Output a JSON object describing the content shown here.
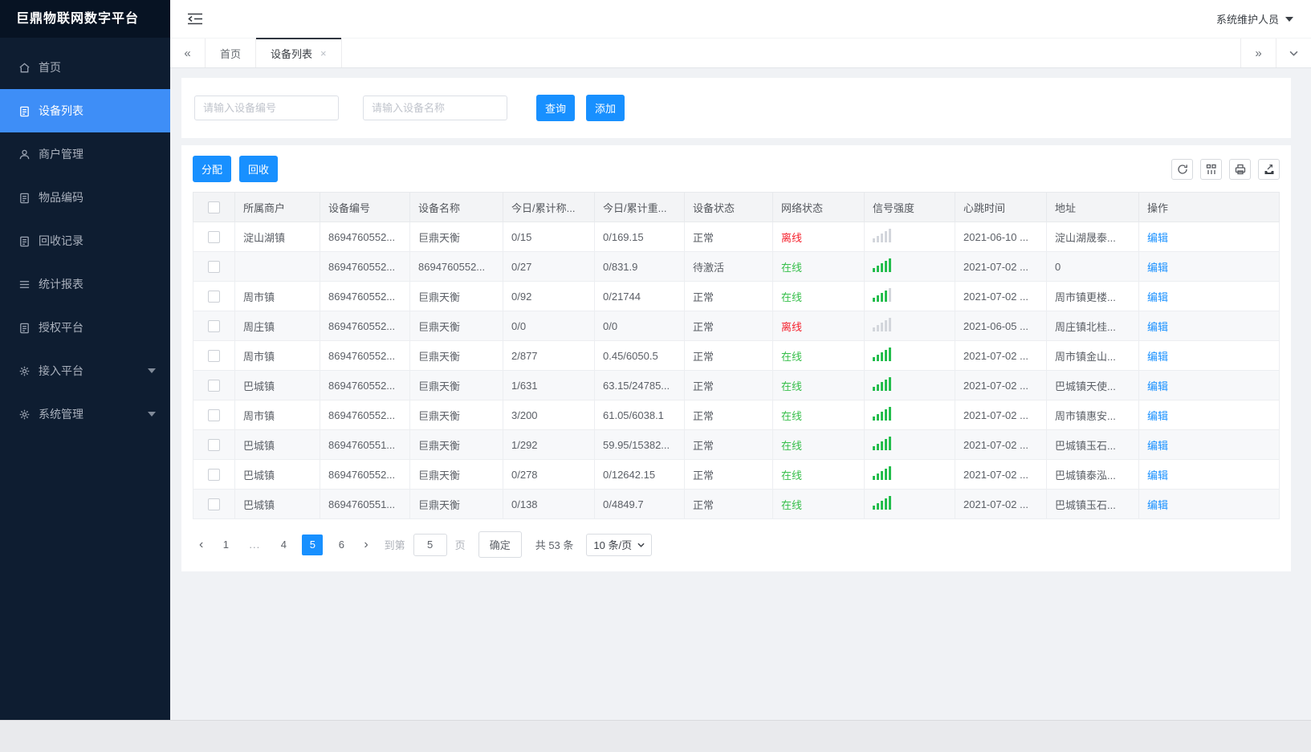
{
  "app": {
    "title": "巨鼎物联网数字平台",
    "user": "系统维护人员"
  },
  "colors": {
    "sidebar_bg": "#0e1d31",
    "sidebar_active": "#3e8ef7",
    "accent_blue": "#1890ff",
    "online_green": "#36bf4a",
    "offline_red": "#f5222d",
    "signal_green": "#24bd4d"
  },
  "sidebar": {
    "items": [
      {
        "id": "home",
        "label": "首页",
        "icon": "home-icon",
        "active": false,
        "expandable": false
      },
      {
        "id": "device-list",
        "label": "设备列表",
        "icon": "clipboard-icon",
        "active": true,
        "expandable": false
      },
      {
        "id": "merchant-mgmt",
        "label": "商户管理",
        "icon": "user-icon",
        "active": false,
        "expandable": false
      },
      {
        "id": "item-codes",
        "label": "物品编码",
        "icon": "clipboard-icon",
        "active": false,
        "expandable": false
      },
      {
        "id": "recycle-records",
        "label": "回收记录",
        "icon": "clipboard-icon",
        "active": false,
        "expandable": false
      },
      {
        "id": "report-stats",
        "label": "统计报表",
        "icon": "lines-icon",
        "active": false,
        "expandable": false
      },
      {
        "id": "auth-platform",
        "label": "授权平台",
        "icon": "clipboard-icon",
        "active": false,
        "expandable": false
      },
      {
        "id": "access-platform",
        "label": "接入平台",
        "icon": "gear-icon",
        "active": false,
        "expandable": true
      },
      {
        "id": "system-mgmt",
        "label": "系统管理",
        "icon": "gear-icon",
        "active": false,
        "expandable": true
      }
    ]
  },
  "tabs": {
    "items": [
      {
        "label": "首页",
        "active": false,
        "closable": false
      },
      {
        "label": "设备列表",
        "active": true,
        "closable": true
      }
    ]
  },
  "search": {
    "device_no_placeholder": "请输入设备编号",
    "device_name_placeholder": "请输入设备名称",
    "query_label": "查询",
    "add_label": "添加"
  },
  "toolbar": {
    "assign_label": "分配",
    "recycle_label": "回收"
  },
  "table": {
    "columns": [
      "所属商户",
      "设备编号",
      "设备名称",
      "今日/累计称...",
      "今日/累计重...",
      "设备状态",
      "网络状态",
      "信号强度",
      "心跳时间",
      "地址",
      "操作"
    ],
    "rows": [
      {
        "merchant": "淀山湖镇",
        "device_no": "8694760552...",
        "device_name": "巨鼎天衡",
        "today_count": "0/15",
        "today_weight": "0/169.15",
        "device_status": "正常",
        "network": "离线",
        "online": false,
        "signal": 0,
        "heartbeat": "2021-06-10 ...",
        "address": "淀山湖晟泰...",
        "action": "编辑"
      },
      {
        "merchant": "",
        "device_no": "8694760552...",
        "device_name": "8694760552...",
        "today_count": "0/27",
        "today_weight": "0/831.9",
        "device_status": "待激活",
        "network": "在线",
        "online": true,
        "signal": 5,
        "heartbeat": "2021-07-02 ...",
        "address": "0",
        "action": "编辑"
      },
      {
        "merchant": "周市镇",
        "device_no": "8694760552...",
        "device_name": "巨鼎天衡",
        "today_count": "0/92",
        "today_weight": "0/21744",
        "device_status": "正常",
        "network": "在线",
        "online": true,
        "signal": 4,
        "heartbeat": "2021-07-02 ...",
        "address": "周市镇更楼...",
        "action": "编辑"
      },
      {
        "merchant": "周庄镇",
        "device_no": "8694760552...",
        "device_name": "巨鼎天衡",
        "today_count": "0/0",
        "today_weight": "0/0",
        "device_status": "正常",
        "network": "离线",
        "online": false,
        "signal": 0,
        "heartbeat": "2021-06-05 ...",
        "address": "周庄镇北桂...",
        "action": "编辑"
      },
      {
        "merchant": "周市镇",
        "device_no": "8694760552...",
        "device_name": "巨鼎天衡",
        "today_count": "2/877",
        "today_weight": "0.45/6050.5",
        "device_status": "正常",
        "network": "在线",
        "online": true,
        "signal": 5,
        "heartbeat": "2021-07-02 ...",
        "address": "周市镇金山...",
        "action": "编辑"
      },
      {
        "merchant": "巴城镇",
        "device_no": "8694760552...",
        "device_name": "巨鼎天衡",
        "today_count": "1/631",
        "today_weight": "63.15/24785...",
        "device_status": "正常",
        "network": "在线",
        "online": true,
        "signal": 5,
        "heartbeat": "2021-07-02 ...",
        "address": "巴城镇天使...",
        "action": "编辑"
      },
      {
        "merchant": "周市镇",
        "device_no": "8694760552...",
        "device_name": "巨鼎天衡",
        "today_count": "3/200",
        "today_weight": "61.05/6038.1",
        "device_status": "正常",
        "network": "在线",
        "online": true,
        "signal": 5,
        "heartbeat": "2021-07-02 ...",
        "address": "周市镇惠安...",
        "action": "编辑"
      },
      {
        "merchant": "巴城镇",
        "device_no": "8694760551...",
        "device_name": "巨鼎天衡",
        "today_count": "1/292",
        "today_weight": "59.95/15382...",
        "device_status": "正常",
        "network": "在线",
        "online": true,
        "signal": 5,
        "heartbeat": "2021-07-02 ...",
        "address": "巴城镇玉石...",
        "action": "编辑"
      },
      {
        "merchant": "巴城镇",
        "device_no": "8694760552...",
        "device_name": "巨鼎天衡",
        "today_count": "0/278",
        "today_weight": "0/12642.15",
        "device_status": "正常",
        "network": "在线",
        "online": true,
        "signal": 5,
        "heartbeat": "2021-07-02 ...",
        "address": "巴城镇泰泓...",
        "action": "编辑"
      },
      {
        "merchant": "巴城镇",
        "device_no": "8694760551...",
        "device_name": "巨鼎天衡",
        "today_count": "0/138",
        "today_weight": "0/4849.7",
        "device_status": "正常",
        "network": "在线",
        "online": true,
        "signal": 5,
        "heartbeat": "2021-07-02 ...",
        "address": "巴城镇玉石...",
        "action": "编辑"
      }
    ]
  },
  "pagination": {
    "pages": [
      "1",
      "...",
      "4",
      "5",
      "6"
    ],
    "active": "5",
    "goto_label": "到第",
    "goto_value": "5",
    "page_label": "页",
    "confirm_label": "确定",
    "total_label": "共 53 条",
    "page_size": "10 条/页"
  }
}
